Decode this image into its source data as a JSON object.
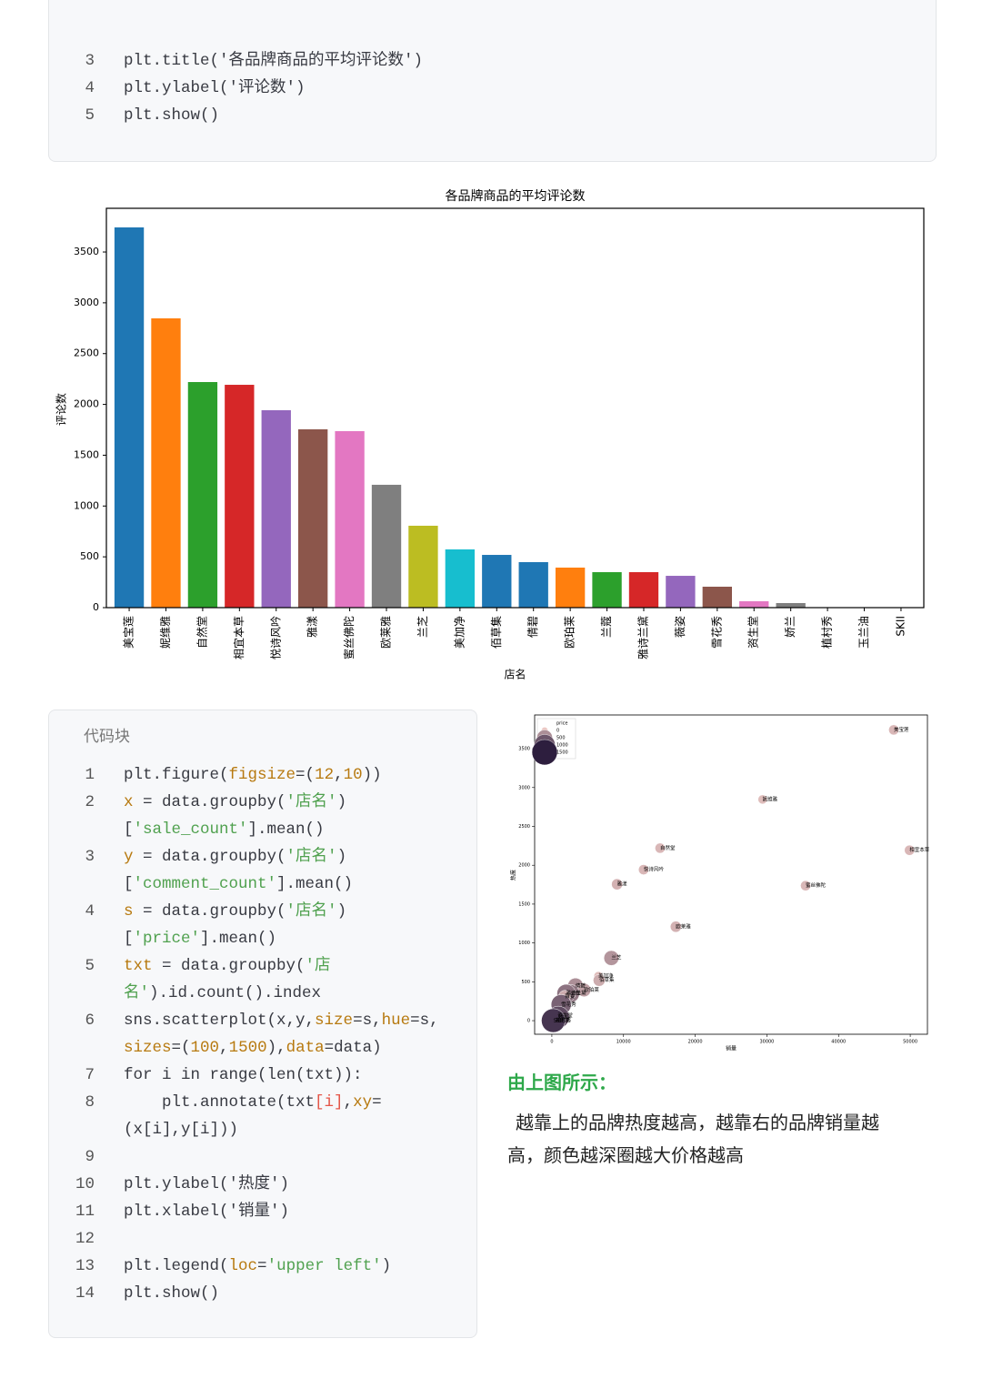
{
  "code_block_1": {
    "lines": [
      {
        "num": "3",
        "rows": [
          [
            "plt.title('各品牌商品的平均评论数')"
          ]
        ]
      },
      {
        "num": "4",
        "rows": [
          [
            "plt.ylabel('评论数')"
          ]
        ]
      },
      {
        "num": "5",
        "rows": [
          [
            "plt.show()"
          ]
        ]
      }
    ]
  },
  "chart_data": [
    {
      "type": "bar",
      "title": "各品牌商品的平均评论数",
      "x_label": "店名",
      "y_label": "评论数",
      "categories": [
        "美宝莲",
        "妮维雅",
        "自然堂",
        "相宜本草",
        "悦诗风吟",
        "雅漾",
        "蜜丝佛陀",
        "欧莱雅",
        "兰芝",
        "美加净",
        "佰草集",
        "倩碧",
        "欧珀莱",
        "兰蔻",
        "雅诗兰黛",
        "薇姿",
        "雪花秀",
        "资生堂",
        "娇兰",
        "植村秀",
        "玉兰油",
        "SKII"
      ],
      "values": [
        3742,
        2847,
        2220,
        2193,
        1943,
        1755,
        1737,
        1209,
        806,
        573,
        519,
        448,
        394,
        349,
        349,
        313,
        206,
        63,
        45,
        3,
        2,
        1
      ],
      "colors": [
        "#1f77b4",
        "#ff7f0e",
        "#2ca02c",
        "#d62728",
        "#9467bd",
        "#8c564b",
        "#e377c2",
        "#7f7f7f",
        "#bcbd22",
        "#17becf",
        "#1f77b4",
        "#1f77b4",
        "#ff7f0e",
        "#2ca02c",
        "#d62728",
        "#9467bd",
        "#8c564b",
        "#e377c2",
        "#7f7f7f",
        "#bcbd22",
        "#17becf",
        "#1f77b4"
      ],
      "ylim": [
        0,
        3930
      ],
      "yticks": [
        0,
        500,
        1000,
        1500,
        2000,
        2500,
        3000,
        3500
      ],
      "grid": false
    },
    {
      "type": "scatter",
      "x_label": "销量",
      "y_label": "热度",
      "labels": [
        "美宝莲",
        "妮维雅",
        "自然堂",
        "相宜本草",
        "悦诗风吟",
        "雅漾",
        "蜜丝佛陀",
        "欧莱雅",
        "兰芝",
        "美加净",
        "佰草集",
        "倩碧",
        "欧珀莱",
        "兰蔻",
        "雅诗兰黛",
        "薇姿",
        "雪花秀",
        "资生堂",
        "娇兰",
        "植村秀",
        "玉兰油",
        "SKII"
      ],
      "x": [
        47700,
        29400,
        15100,
        49900,
        12800,
        9100,
        35400,
        17300,
        8300,
        6500,
        6600,
        3300,
        4500,
        2600,
        2000,
        1800,
        1300,
        800,
        900,
        600,
        400,
        200
      ],
      "y": [
        3742,
        2847,
        2220,
        2193,
        1943,
        1755,
        1737,
        1209,
        806,
        573,
        519,
        448,
        394,
        349,
        349,
        313,
        206,
        63,
        45,
        3,
        2,
        1
      ],
      "sizes": [
        150,
        100,
        150,
        150,
        150,
        200,
        150,
        200,
        450,
        100,
        250,
        500,
        350,
        700,
        750,
        250,
        900,
        550,
        1100,
        700,
        250,
        1300
      ],
      "legend": {
        "title": "price",
        "values": [
          0,
          500,
          1000,
          1500
        ]
      },
      "legend_loc": "upper left",
      "xlim": [
        -2400,
        52400
      ],
      "ylim": [
        -175,
        3934
      ],
      "xticks": [
        0,
        10000,
        20000,
        30000,
        40000,
        50000
      ],
      "yticks": [
        0,
        500,
        1000,
        1500,
        2000,
        2500,
        3000,
        3500
      ]
    }
  ],
  "code_block_2": {
    "title": "代码块",
    "lines": [
      {
        "num": "1",
        "rows": [
          [
            "plt.figure(",
            {
              "text": "figsize",
              "color": "#b7790f"
            },
            "=(",
            {
              "text": "12",
              "color": "#b7790f"
            },
            ",",
            {
              "text": "10",
              "color": "#b7790f"
            },
            "))"
          ]
        ]
      },
      {
        "num": "2",
        "rows": [
          [
            {
              "text": "x",
              "color": "#b7790f"
            },
            " = data.groupby(",
            {
              "text": "'店名'",
              "color": "#50a14f"
            },
            ")"
          ],
          [
            "[",
            {
              "text": "'sale_count'",
              "color": "#50a14f"
            },
            "].mean()"
          ]
        ]
      },
      {
        "num": "3",
        "rows": [
          [
            {
              "text": "y",
              "color": "#b7790f"
            },
            " = data.groupby(",
            {
              "text": "'店名'",
              "color": "#50a14f"
            },
            ")"
          ],
          [
            "[",
            {
              "text": "'comment_count'",
              "color": "#50a14f"
            },
            "].mean()"
          ]
        ]
      },
      {
        "num": "4",
        "rows": [
          [
            {
              "text": "s",
              "color": "#b7790f"
            },
            " = data.groupby(",
            {
              "text": "'店名'",
              "color": "#50a14f"
            },
            ")"
          ],
          [
            "[",
            {
              "text": "'price'",
              "color": "#50a14f"
            },
            "].mean()"
          ]
        ]
      },
      {
        "num": "5",
        "rows": [
          [
            {
              "text": "txt",
              "color": "#b7790f"
            },
            " = data.groupby(",
            {
              "text": "'店",
              "color": "#50a14f"
            }
          ],
          [
            {
              "text": "名'",
              "color": "#50a14f"
            },
            ").id.count().index"
          ]
        ]
      },
      {
        "num": "6",
        "rows": [
          [
            "sns.scatterplot(x,y,",
            {
              "text": "size",
              "color": "#b7790f"
            },
            "=s,",
            {
              "text": "hue",
              "color": "#b7790f"
            },
            "=s,"
          ],
          [
            {
              "text": "sizes",
              "color": "#b7790f"
            },
            "=(",
            {
              "text": "100",
              "color": "#b7790f"
            },
            ",",
            {
              "text": "1500",
              "color": "#b7790f"
            },
            "),",
            {
              "text": "data",
              "color": "#b7790f"
            },
            "=data)"
          ]
        ]
      },
      {
        "num": "7",
        "rows": [
          [
            "for i in range(len(txt)):"
          ]
        ]
      },
      {
        "num": "8",
        "rows": [
          [
            "    plt.annotate(txt",
            {
              "text": "[i]",
              "color": "#e45649"
            },
            ",",
            {
              "text": "xy",
              "color": "#b7790f"
            },
            "="
          ],
          [
            "(x[i],y[i]))"
          ]
        ]
      },
      {
        "num": "9",
        "rows": [
          []
        ]
      },
      {
        "num": "10",
        "rows": [
          [
            "plt.ylabel('热度')"
          ]
        ]
      },
      {
        "num": "11",
        "rows": [
          [
            "plt.xlabel('销量')"
          ]
        ]
      },
      {
        "num": "12",
        "rows": [
          []
        ]
      },
      {
        "num": "13",
        "rows": [
          [
            "plt.legend(",
            {
              "text": "loc",
              "color": "#b7790f"
            },
            "=",
            {
              "text": "'upper left'",
              "color": "#50a14f"
            },
            ")"
          ]
        ]
      },
      {
        "num": "14",
        "rows": [
          [
            "plt.show()"
          ]
        ]
      }
    ]
  },
  "note": {
    "heading": "由上图所示：",
    "text": "越靠上的品牌热度越高，越靠右的品牌销量越高，颜色越深圈越大价格越高"
  }
}
